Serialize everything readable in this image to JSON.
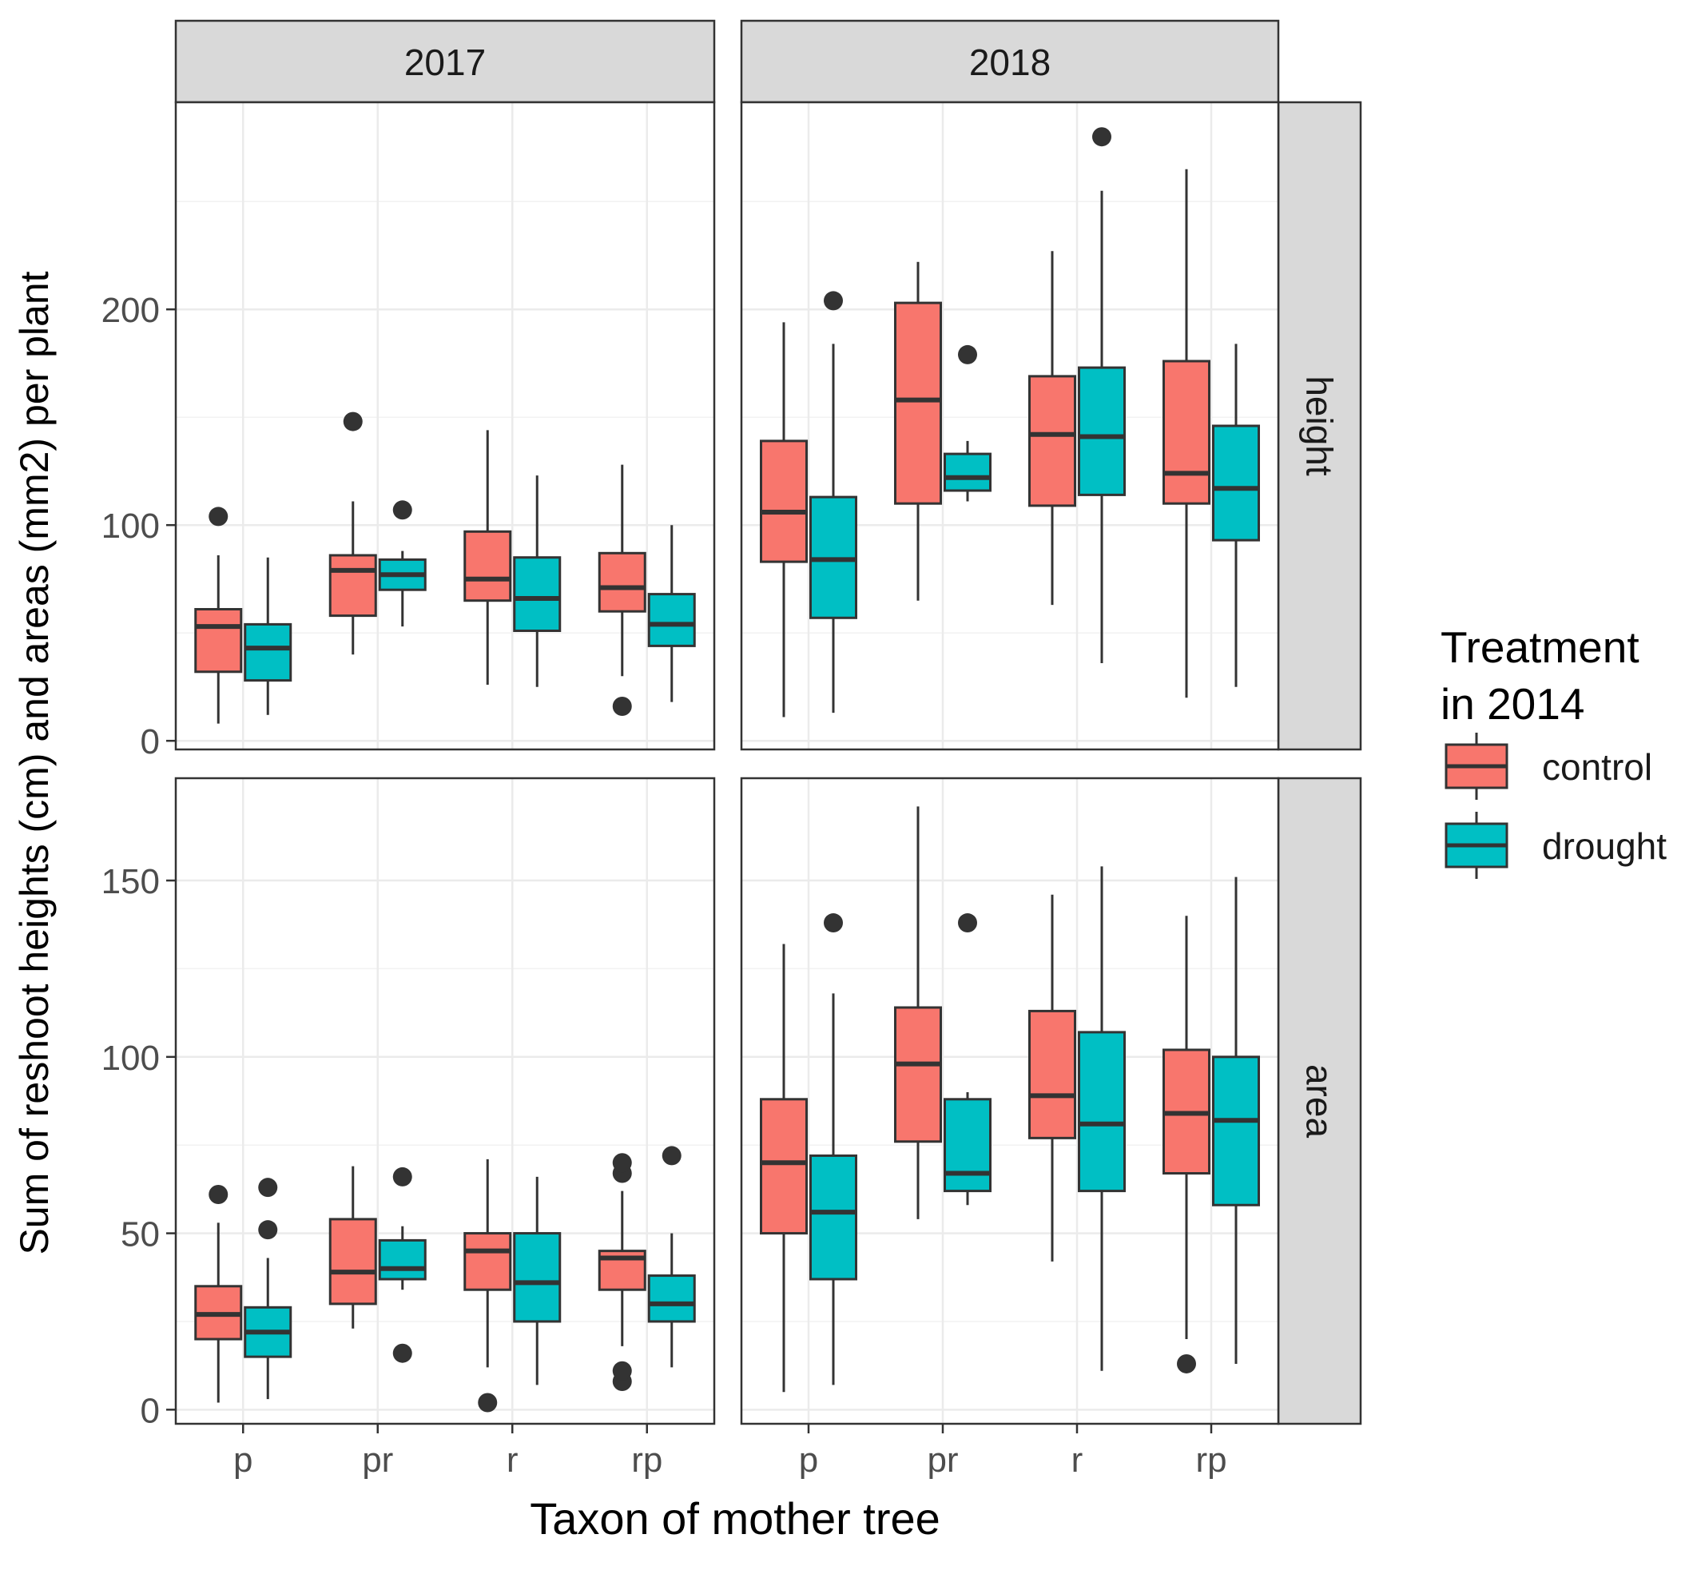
{
  "chart_data": {
    "type": "boxplot",
    "xlabel": "Taxon of mother tree",
    "ylabel": "Sum of reshoot heights (cm) and areas (mm2) per plant",
    "categories": [
      "p",
      "pr",
      "r",
      "rp"
    ],
    "legend": {
      "title_lines": [
        "Treatment",
        "in 2014"
      ],
      "entries": [
        {
          "name": "control",
          "color": "#F8766D"
        },
        {
          "name": "drought",
          "color": "#00BFC4"
        }
      ],
      "placement": "right"
    },
    "columns": [
      "2017",
      "2018"
    ],
    "rows": [
      {
        "label": "height",
        "ylim": [
          -4,
          296
        ],
        "ticks": [
          0,
          100,
          200
        ],
        "minor_ticks": [
          50,
          150,
          250
        ]
      },
      {
        "label": "area",
        "ylim": [
          -4,
          179
        ],
        "ticks": [
          0,
          50,
          100,
          150
        ],
        "minor_ticks": [
          25,
          75,
          125
        ]
      }
    ],
    "panels": [
      {
        "row": "height",
        "column": "2017",
        "boxes": [
          {
            "category": "p",
            "treatment": "control",
            "whisker_low": 8,
            "q1": 32,
            "median": 53,
            "q3": 61,
            "whisker_high": 86,
            "outliers": [
              104
            ]
          },
          {
            "category": "p",
            "treatment": "drought",
            "whisker_low": 12,
            "q1": 28,
            "median": 43,
            "q3": 54,
            "whisker_high": 85,
            "outliers": []
          },
          {
            "category": "pr",
            "treatment": "control",
            "whisker_low": 40,
            "q1": 58,
            "median": 79,
            "q3": 86,
            "whisker_high": 111,
            "outliers": [
              148
            ]
          },
          {
            "category": "pr",
            "treatment": "drought",
            "whisker_low": 53,
            "q1": 70,
            "median": 77,
            "q3": 84,
            "whisker_high": 88,
            "outliers": [
              107
            ]
          },
          {
            "category": "r",
            "treatment": "control",
            "whisker_low": 26,
            "q1": 65,
            "median": 75,
            "q3": 97,
            "whisker_high": 144,
            "outliers": []
          },
          {
            "category": "r",
            "treatment": "drought",
            "whisker_low": 25,
            "q1": 51,
            "median": 66,
            "q3": 85,
            "whisker_high": 123,
            "outliers": []
          },
          {
            "category": "rp",
            "treatment": "control",
            "whisker_low": 30,
            "q1": 60,
            "median": 71,
            "q3": 87,
            "whisker_high": 128,
            "outliers": [
              16
            ]
          },
          {
            "category": "rp",
            "treatment": "drought",
            "whisker_low": 18,
            "q1": 44,
            "median": 54,
            "q3": 68,
            "whisker_high": 100,
            "outliers": []
          }
        ]
      },
      {
        "row": "height",
        "column": "2018",
        "boxes": [
          {
            "category": "p",
            "treatment": "control",
            "whisker_low": 11,
            "q1": 83,
            "median": 106,
            "q3": 139,
            "whisker_high": 194,
            "outliers": []
          },
          {
            "category": "p",
            "treatment": "drought",
            "whisker_low": 13,
            "q1": 57,
            "median": 84,
            "q3": 113,
            "whisker_high": 184,
            "outliers": [
              204
            ]
          },
          {
            "category": "pr",
            "treatment": "control",
            "whisker_low": 65,
            "q1": 110,
            "median": 158,
            "q3": 203,
            "whisker_high": 222,
            "outliers": []
          },
          {
            "category": "pr",
            "treatment": "drought",
            "whisker_low": 111,
            "q1": 116,
            "median": 122,
            "q3": 133,
            "whisker_high": 139,
            "outliers": [
              179
            ]
          },
          {
            "category": "r",
            "treatment": "control",
            "whisker_low": 63,
            "q1": 109,
            "median": 142,
            "q3": 169,
            "whisker_high": 227,
            "outliers": []
          },
          {
            "category": "r",
            "treatment": "drought",
            "whisker_low": 36,
            "q1": 114,
            "median": 141,
            "q3": 173,
            "whisker_high": 255,
            "outliers": [
              280
            ]
          },
          {
            "category": "rp",
            "treatment": "control",
            "whisker_low": 20,
            "q1": 110,
            "median": 124,
            "q3": 176,
            "whisker_high": 265,
            "outliers": []
          },
          {
            "category": "rp",
            "treatment": "drought",
            "whisker_low": 25,
            "q1": 93,
            "median": 117,
            "q3": 146,
            "whisker_high": 184,
            "outliers": []
          }
        ]
      },
      {
        "row": "area",
        "column": "2017",
        "boxes": [
          {
            "category": "p",
            "treatment": "control",
            "whisker_low": 2,
            "q1": 20,
            "median": 27,
            "q3": 35,
            "whisker_high": 53,
            "outliers": [
              61
            ]
          },
          {
            "category": "p",
            "treatment": "drought",
            "whisker_low": 3,
            "q1": 15,
            "median": 22,
            "q3": 29,
            "whisker_high": 43,
            "outliers": [
              51,
              63
            ]
          },
          {
            "category": "pr",
            "treatment": "control",
            "whisker_low": 23,
            "q1": 30,
            "median": 39,
            "q3": 54,
            "whisker_high": 69,
            "outliers": []
          },
          {
            "category": "pr",
            "treatment": "drought",
            "whisker_low": 34,
            "q1": 37,
            "median": 40,
            "q3": 48,
            "whisker_high": 52,
            "outliers": [
              16,
              66
            ]
          },
          {
            "category": "r",
            "treatment": "control",
            "whisker_low": 12,
            "q1": 34,
            "median": 45,
            "q3": 50,
            "whisker_high": 71,
            "outliers": [
              2
            ]
          },
          {
            "category": "r",
            "treatment": "drought",
            "whisker_low": 7,
            "q1": 25,
            "median": 36,
            "q3": 50,
            "whisker_high": 66,
            "outliers": []
          },
          {
            "category": "rp",
            "treatment": "control",
            "whisker_low": 18,
            "q1": 34,
            "median": 43,
            "q3": 45,
            "whisker_high": 62,
            "outliers": [
              8,
              11,
              67,
              70
            ]
          },
          {
            "category": "rp",
            "treatment": "drought",
            "whisker_low": 12,
            "q1": 25,
            "median": 30,
            "q3": 38,
            "whisker_high": 50,
            "outliers": [
              72
            ]
          }
        ]
      },
      {
        "row": "area",
        "column": "2018",
        "boxes": [
          {
            "category": "p",
            "treatment": "control",
            "whisker_low": 5,
            "q1": 50,
            "median": 70,
            "q3": 88,
            "whisker_high": 132,
            "outliers": []
          },
          {
            "category": "p",
            "treatment": "drought",
            "whisker_low": 7,
            "q1": 37,
            "median": 56,
            "q3": 72,
            "whisker_high": 118,
            "outliers": [
              138
            ]
          },
          {
            "category": "pr",
            "treatment": "control",
            "whisker_low": 54,
            "q1": 76,
            "median": 98,
            "q3": 114,
            "whisker_high": 171,
            "outliers": []
          },
          {
            "category": "pr",
            "treatment": "drought",
            "whisker_low": 58,
            "q1": 62,
            "median": 67,
            "q3": 88,
            "whisker_high": 90,
            "outliers": [
              138
            ]
          },
          {
            "category": "r",
            "treatment": "control",
            "whisker_low": 42,
            "q1": 77,
            "median": 89,
            "q3": 113,
            "whisker_high": 146,
            "outliers": []
          },
          {
            "category": "r",
            "treatment": "drought",
            "whisker_low": 11,
            "q1": 62,
            "median": 81,
            "q3": 107,
            "whisker_high": 154,
            "outliers": []
          },
          {
            "category": "rp",
            "treatment": "control",
            "whisker_low": 20,
            "q1": 67,
            "median": 84,
            "q3": 102,
            "whisker_high": 140,
            "outliers": [
              13
            ]
          },
          {
            "category": "rp",
            "treatment": "drought",
            "whisker_low": 13,
            "q1": 58,
            "median": 82,
            "q3": 100,
            "whisker_high": 151,
            "outliers": []
          }
        ]
      }
    ]
  }
}
